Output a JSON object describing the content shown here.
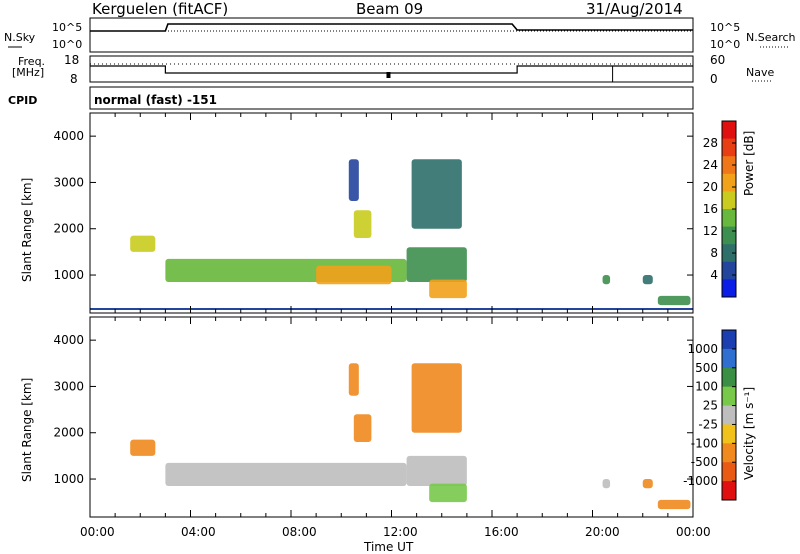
{
  "header": {
    "station": "Kerguelen (fitACF)",
    "beam": "Beam 09",
    "date": "31/Aug/2014"
  },
  "noise_panel": {
    "left_label": "N.Sky",
    "right_label": "N.Search",
    "y_ticks": [
      "10^5",
      "10^0"
    ]
  },
  "freq_panel": {
    "left_label_1": "Freq.",
    "left_label_2": "[MHz]",
    "left_ticks": [
      "18",
      "8"
    ],
    "right_label": "Nave",
    "right_ticks": [
      "60",
      "0"
    ]
  },
  "cpid": {
    "label": "CPID",
    "value": "normal (fast) -151"
  },
  "time_axis": {
    "label": "Time UT",
    "ticks": [
      "00:00",
      "04:00",
      "08:00",
      "12:00",
      "16:00",
      "20:00",
      "00:00"
    ]
  },
  "power_colorbar": {
    "label": "Power [dB]",
    "ticks": [
      "4",
      "8",
      "12",
      "16",
      "20",
      "24",
      "28"
    ],
    "colors": [
      "#0a1ee8",
      "#23459c",
      "#2f6f6a",
      "#3d8f4f",
      "#67b83c",
      "#c9cc1e",
      "#f1a11a",
      "#f0761a",
      "#e83e14",
      "#e01010"
    ]
  },
  "velocity_colorbar": {
    "label": "Velocity [m s⁻¹]",
    "ticks": [
      "1000",
      "500",
      "100",
      "25",
      "-25",
      "-100",
      "-500",
      "-1000"
    ],
    "colors": [
      "#1b3fb0",
      "#2f6fd0",
      "#3b8f44",
      "#78c84a",
      "#bebebe",
      "#f1c21b",
      "#f08a1e",
      "#e95a16",
      "#e01010"
    ]
  },
  "chart_data": [
    {
      "type": "heatmap",
      "title": "",
      "xlabel": "Time UT",
      "ylabel": "Slant Range [km]",
      "xlim": [
        0,
        24
      ],
      "ylim": [
        180,
        4500
      ],
      "y_ticks": [
        1000,
        2000,
        3000,
        4000
      ],
      "colorbar_label": "Power [dB]",
      "colorbar_range": [
        0,
        32
      ],
      "regions": [
        {
          "t_start": 1.6,
          "t_end": 2.6,
          "range_start": 1500,
          "range_end": 1850,
          "value": 16
        },
        {
          "t_start": 3.0,
          "t_end": 12.6,
          "range_start": 850,
          "range_end": 1350,
          "value": 14
        },
        {
          "t_start": 9.0,
          "t_end": 12.0,
          "range_start": 800,
          "range_end": 1200,
          "value": 22
        },
        {
          "t_start": 10.5,
          "t_end": 11.2,
          "range_start": 1800,
          "range_end": 2400,
          "value": 18
        },
        {
          "t_start": 10.3,
          "t_end": 10.7,
          "range_start": 2600,
          "range_end": 3500,
          "value": 6
        },
        {
          "t_start": 12.6,
          "t_end": 15.0,
          "range_start": 850,
          "range_end": 1600,
          "value": 10
        },
        {
          "t_start": 13.5,
          "t_end": 15.0,
          "range_start": 500,
          "range_end": 900,
          "value": 22
        },
        {
          "t_start": 12.8,
          "t_end": 14.8,
          "range_start": 2000,
          "range_end": 3500,
          "value": 8
        },
        {
          "t_start": 20.4,
          "t_end": 20.7,
          "range_start": 800,
          "range_end": 1000,
          "value": 12
        },
        {
          "t_start": 22.0,
          "t_end": 22.4,
          "range_start": 800,
          "range_end": 1000,
          "value": 8
        },
        {
          "t_start": 22.6,
          "t_end": 23.9,
          "range_start": 350,
          "range_end": 550,
          "value": 10
        }
      ]
    },
    {
      "type": "heatmap",
      "title": "",
      "xlabel": "Time UT",
      "ylabel": "Slant Range [km]",
      "xlim": [
        0,
        24
      ],
      "ylim": [
        180,
        4500
      ],
      "y_ticks": [
        1000,
        2000,
        3000,
        4000
      ],
      "colorbar_label": "Velocity [m s⁻¹]",
      "colorbar_ticks": [
        1000,
        500,
        100,
        25,
        -25,
        -100,
        -500,
        -1000
      ],
      "regions": [
        {
          "t_start": 1.6,
          "t_end": 2.6,
          "range_start": 1500,
          "range_end": 1850,
          "value": -300
        },
        {
          "t_start": 3.0,
          "t_end": 12.6,
          "range_start": 850,
          "range_end": 1350,
          "value": 0
        },
        {
          "t_start": 10.5,
          "t_end": 11.2,
          "range_start": 1800,
          "range_end": 2400,
          "value": -300
        },
        {
          "t_start": 10.3,
          "t_end": 10.7,
          "range_start": 2800,
          "range_end": 3500,
          "value": -300
        },
        {
          "t_start": 12.6,
          "t_end": 15.0,
          "range_start": 850,
          "range_end": 1500,
          "value": 0
        },
        {
          "t_start": 13.5,
          "t_end": 15.0,
          "range_start": 500,
          "range_end": 900,
          "value": 80
        },
        {
          "t_start": 12.8,
          "t_end": 14.8,
          "range_start": 2000,
          "range_end": 3500,
          "value": -300
        },
        {
          "t_start": 20.4,
          "t_end": 20.7,
          "range_start": 800,
          "range_end": 1000,
          "value": 0
        },
        {
          "t_start": 22.0,
          "t_end": 22.4,
          "range_start": 800,
          "range_end": 1000,
          "value": -300
        },
        {
          "t_start": 22.6,
          "t_end": 23.9,
          "range_start": 350,
          "range_end": 550,
          "value": -300
        }
      ]
    }
  ]
}
